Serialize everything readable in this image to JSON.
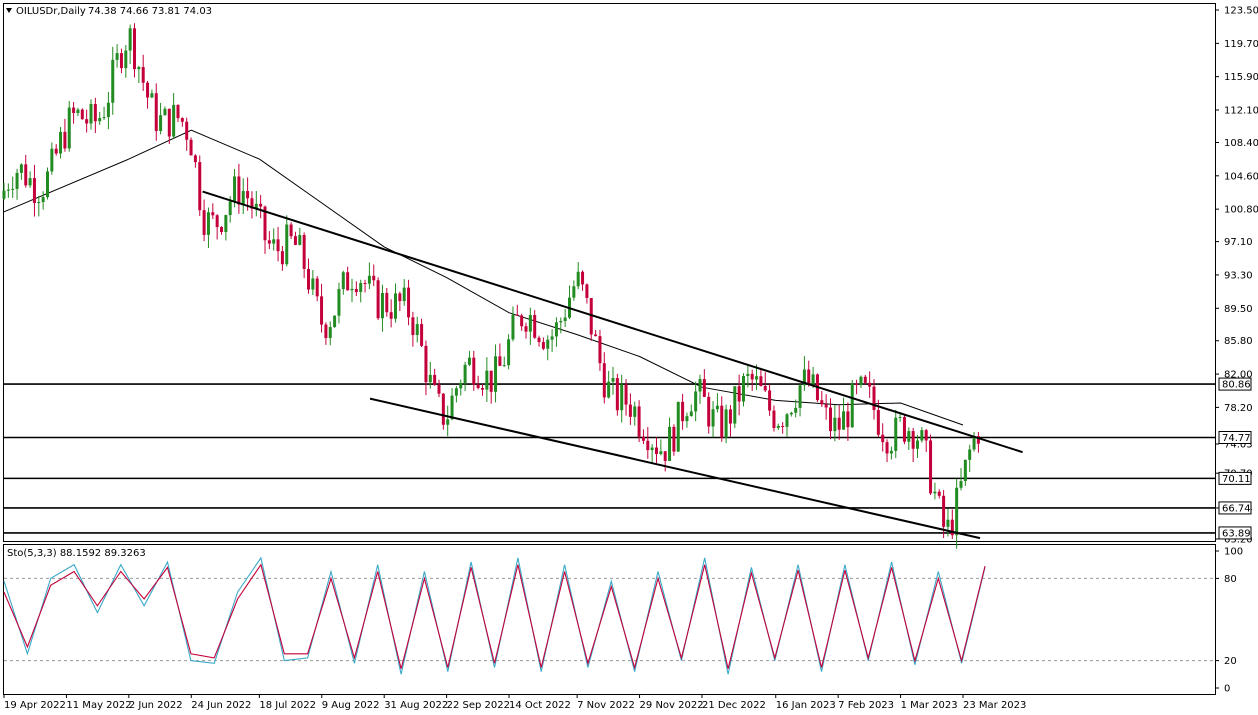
{
  "header": {
    "symbol": "OILUSDr,Daily",
    "ohlc": "74.38 74.66 73.81 74.03"
  },
  "indicator_label": "Sto(5,3,3) 88.1592 89.3263",
  "colors": {
    "background": "#ffffff",
    "bull": "#228B22",
    "bear": "#C4003A",
    "ma": "#000000",
    "stoch_main": "#3BA9C9",
    "stoch_signal": "#C4003A",
    "grid_dash": "#999999"
  },
  "chart_data": [
    {
      "type": "candlestick",
      "title": "OILUSDr,Daily",
      "ylim": [
        63.2,
        123.5
      ],
      "y_ticks": [
        "123.50",
        "119.70",
        "115.90",
        "112.10",
        "108.40",
        "104.60",
        "100.80",
        "97.10",
        "93.30",
        "89.50",
        "85.80",
        "82.00",
        "78.20",
        "74.03",
        "70.70",
        "66.74",
        "63.20"
      ],
      "x_ticks": [
        "19 Apr 2022",
        "11 May 2022",
        "2 Jun 2022",
        "24 Jun 2022",
        "18 Jul 2022",
        "9 Aug 2022",
        "31 Aug 2022",
        "22 Sep 2022",
        "14 Oct 2022",
        "7 Nov 2022",
        "29 Nov 2022",
        "21 Dec 2022",
        "16 Jan 2023",
        "7 Feb 2023",
        "1 Mar 2023",
        "23 Mar 2023"
      ],
      "last_close": 74.03,
      "horizontal_levels": [
        {
          "label": "80.86",
          "value": 80.86
        },
        {
          "label": "74.77",
          "value": 74.77
        },
        {
          "label": "70.11",
          "value": 70.11
        },
        {
          "label": "66.74",
          "value": 66.74
        },
        {
          "label": "63.89",
          "value": 63.89
        }
      ],
      "channel_upper": {
        "start": [
          "28 Jun 2022",
          102.8
        ],
        "end": [
          "13 Apr 2023",
          73.1
        ]
      },
      "channel_lower": {
        "start": [
          "26 Aug 2022",
          79.2
        ],
        "end": [
          "29 Mar 2023",
          63.3
        ]
      },
      "moving_average_approx": [
        [
          "19 Apr 2022",
          100.5
        ],
        [
          "2 Jun 2022",
          106.5
        ],
        [
          "24 Jun 2022",
          109.8
        ],
        [
          "18 Jul 2022",
          106.5
        ],
        [
          "9 Aug 2022",
          101.5
        ],
        [
          "31 Aug 2022",
          96.5
        ],
        [
          "22 Sep 2022",
          93.0
        ],
        [
          "14 Oct 2022",
          89.0
        ],
        [
          "7 Nov 2022",
          86.5
        ],
        [
          "29 Nov 2022",
          84.0
        ],
        [
          "21 Dec 2022",
          80.5
        ],
        [
          "16 Jan 2023",
          79.0
        ],
        [
          "7 Feb 2023",
          78.5
        ],
        [
          "1 Mar 2023",
          78.7
        ],
        [
          "23 Mar 2023",
          76.2
        ]
      ],
      "close_path_approx": [
        [
          "19 Apr 2022",
          102.0
        ],
        [
          "11 May 2022",
          108.0
        ],
        [
          "2 Jun 2022",
          118.5
        ],
        [
          "24 Jun 2022",
          107.0
        ],
        [
          "28 Jun 2022",
          101.5
        ],
        [
          "18 Jul 2022",
          100.5
        ],
        [
          "9 Aug 2022",
          90.0
        ],
        [
          "31 Aug 2022",
          92.5
        ],
        [
          "22 Sep 2022",
          78.5
        ],
        [
          "14 Oct 2022",
          85.5
        ],
        [
          "7 Nov 2022",
          90.5
        ],
        [
          "29 Nov 2022",
          74.5
        ],
        [
          "21 Dec 2022",
          78.0
        ],
        [
          "16 Jan 2023",
          79.5
        ],
        [
          "7 Feb 2023",
          78.0
        ],
        [
          "1 Mar 2023",
          77.0
        ],
        [
          "17 Mar 2023",
          66.0
        ],
        [
          "23 Mar 2023",
          69.5
        ],
        [
          "29 Mar 2023",
          74.03
        ]
      ]
    },
    {
      "type": "line",
      "title": "Sto(5,3,3) 88.1592 89.3263",
      "ylim": [
        0,
        100
      ],
      "y_ticks": [
        "100",
        "80",
        "20",
        "0"
      ],
      "levels": [
        80,
        20
      ],
      "series": [
        {
          "name": "88.1592",
          "values_approx": [
            78,
            25,
            80,
            90,
            55,
            90,
            60,
            92,
            20,
            18,
            70,
            95,
            20,
            22,
            85,
            18,
            90,
            10,
            85,
            12,
            92,
            15,
            95,
            12,
            90,
            15,
            78,
            12,
            85,
            20,
            95,
            10,
            88,
            20,
            90,
            12,
            90,
            20,
            92,
            17,
            85,
            18,
            88
          ]
        },
        {
          "name": "89.3263",
          "values_approx": [
            70,
            30,
            75,
            85,
            60,
            85,
            65,
            88,
            25,
            22,
            65,
            90,
            25,
            25,
            80,
            22,
            85,
            14,
            80,
            15,
            88,
            18,
            90,
            15,
            85,
            18,
            74,
            15,
            80,
            22,
            90,
            14,
            84,
            22,
            86,
            15,
            86,
            22,
            88,
            20,
            80,
            20,
            89
          ]
        }
      ]
    }
  ]
}
